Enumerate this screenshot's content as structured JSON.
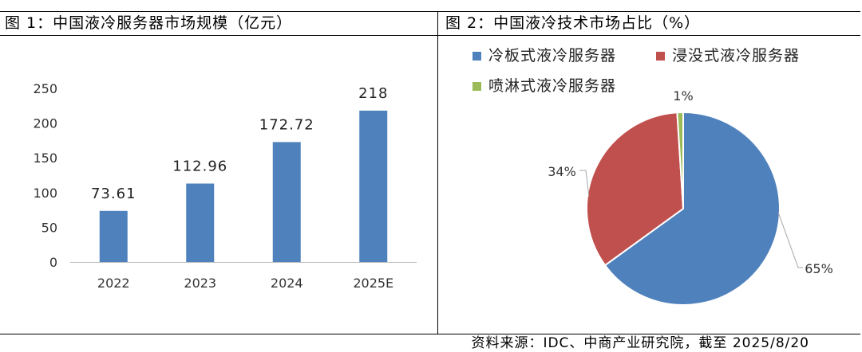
{
  "figure1": {
    "title": "图 1：中国液冷服务器市场规模（亿元）"
  },
  "figure2": {
    "title": "图 2：中国液冷技术市场占比（%）"
  },
  "source": "资料来源：IDC、中商产业研究院，截至 2025/8/20",
  "chart_data": [
    {
      "type": "bar",
      "categories": [
        "2022",
        "2023",
        "2024",
        "2025E"
      ],
      "values": [
        73.61,
        112.96,
        172.72,
        218
      ],
      "value_labels": [
        "73.61",
        "112.96",
        "172.72",
        "218"
      ],
      "ylim": [
        0,
        250
      ],
      "yticks": [
        0,
        50,
        100,
        150,
        200,
        250
      ],
      "grid": false,
      "color": "#4f81bd"
    },
    {
      "type": "pie",
      "labels": [
        "冷板式液冷服务器",
        "浸没式液冷服务器",
        "喷淋式液冷服务器"
      ],
      "values": [
        65,
        34,
        1
      ],
      "value_labels": [
        "65%",
        "34%",
        "1%"
      ],
      "colors": [
        "#4f81bd",
        "#c0504d",
        "#9bbb59"
      ],
      "legend": "top"
    }
  ]
}
